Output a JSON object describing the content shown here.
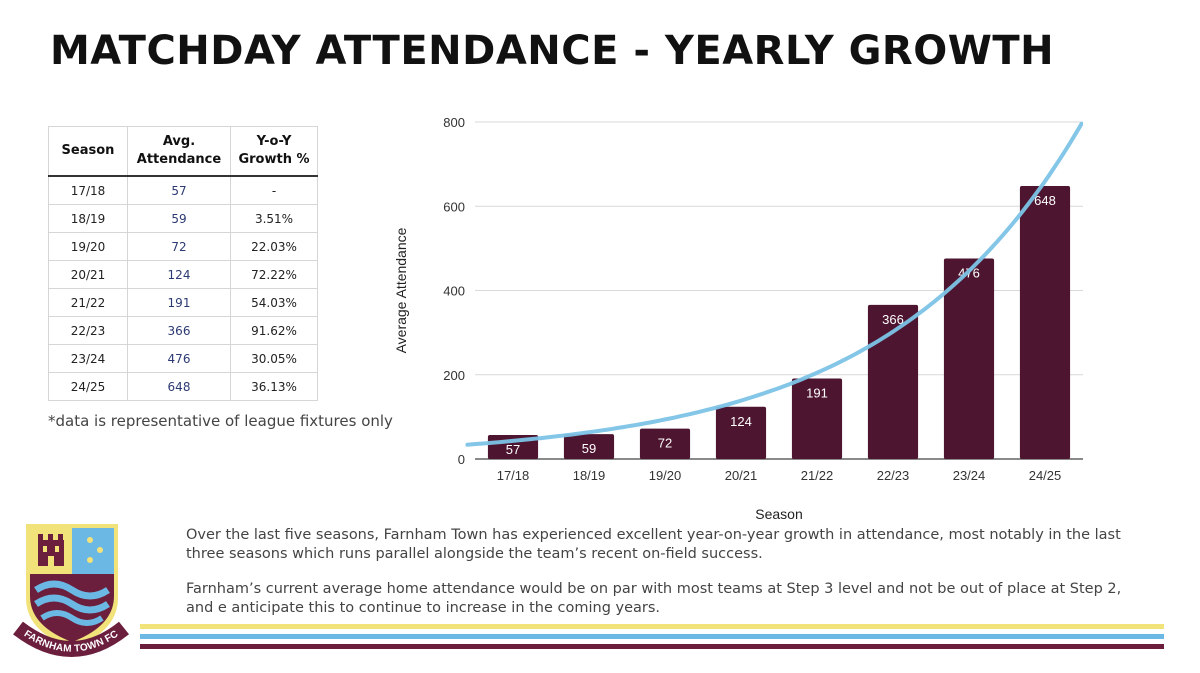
{
  "title": "MATCHDAY ATTENDANCE - YEARLY GROWTH",
  "table": {
    "headers": {
      "season": "Season",
      "avg_line1": "Avg.",
      "avg_line2": "Attendance",
      "growth_line1": "Y-o-Y",
      "growth_line2": "Growth %"
    },
    "rows": [
      {
        "season": "17/18",
        "avg": "57",
        "growth": "-"
      },
      {
        "season": "18/19",
        "avg": "59",
        "growth": "3.51%"
      },
      {
        "season": "19/20",
        "avg": "72",
        "growth": "22.03%"
      },
      {
        "season": "20/21",
        "avg": "124",
        "growth": "72.22%"
      },
      {
        "season": "21/22",
        "avg": "191",
        "growth": "54.03%"
      },
      {
        "season": "22/23",
        "avg": "366",
        "growth": "91.62%"
      },
      {
        "season": "23/24",
        "avg": "476",
        "growth": "30.05%"
      },
      {
        "season": "24/25",
        "avg": "648",
        "growth": "36.13%"
      }
    ]
  },
  "footnote": "*data is representative of league fixtures only",
  "chart_data": {
    "type": "bar",
    "categories": [
      "17/18",
      "18/19",
      "19/20",
      "20/21",
      "21/22",
      "22/23",
      "23/24",
      "24/25"
    ],
    "values": [
      57,
      59,
      72,
      124,
      191,
      366,
      476,
      648
    ],
    "xlabel": "Season",
    "ylabel": "Average Attendance",
    "ylim": [
      0,
      800
    ],
    "yticks": [
      0,
      200,
      400,
      600,
      800
    ],
    "grid": true,
    "trendline": "exponential",
    "colors": {
      "bar": "#4e1530",
      "trend": "#7cc3e6",
      "grid": "#d9d9d9"
    }
  },
  "paragraphs": {
    "p1": "Over the last five seasons, Farnham Town has experienced excellent year-on-year growth in attendance, most notably in the last three seasons which runs parallel alongside the team’s recent on-field success.",
    "p2": "Farnham’s current average home attendance would be on par with most teams at Step 3 level and not be out of place at Step 2, and e anticipate this to continue to increase in the coming years."
  },
  "crest": {
    "text": "FARNHAM TOWN FC"
  },
  "colors": {
    "stripe_yellow": "#f1e27a",
    "stripe_blue": "#6cb8e4",
    "stripe_maroon": "#6b1f3d"
  }
}
